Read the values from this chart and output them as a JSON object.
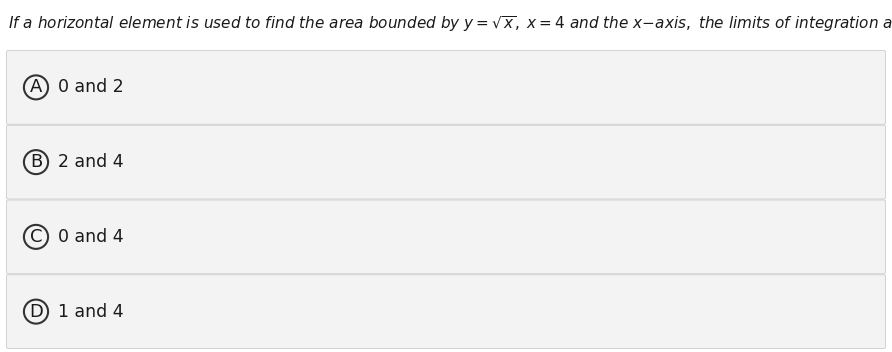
{
  "question_text": "If a horizontal element is used to find the area bounded by y=√x , x=4 and the x−axis, the limits of integration are:",
  "options": [
    {
      "label": "A",
      "text": "0 and 2"
    },
    {
      "label": "B",
      "text": "2 and 4"
    },
    {
      "label": "C",
      "text": "0 and 4"
    },
    {
      "label": "D",
      "text": "1 and 4"
    }
  ],
  "bg_color": "#ffffff",
  "option_bg_color": "#f3f3f3",
  "option_border_color": "#cccccc",
  "text_color": "#1a1a1a",
  "circle_edge_color": "#333333",
  "question_fontsize": 11.0,
  "option_fontsize": 12.5,
  "label_fontsize": 13.0
}
